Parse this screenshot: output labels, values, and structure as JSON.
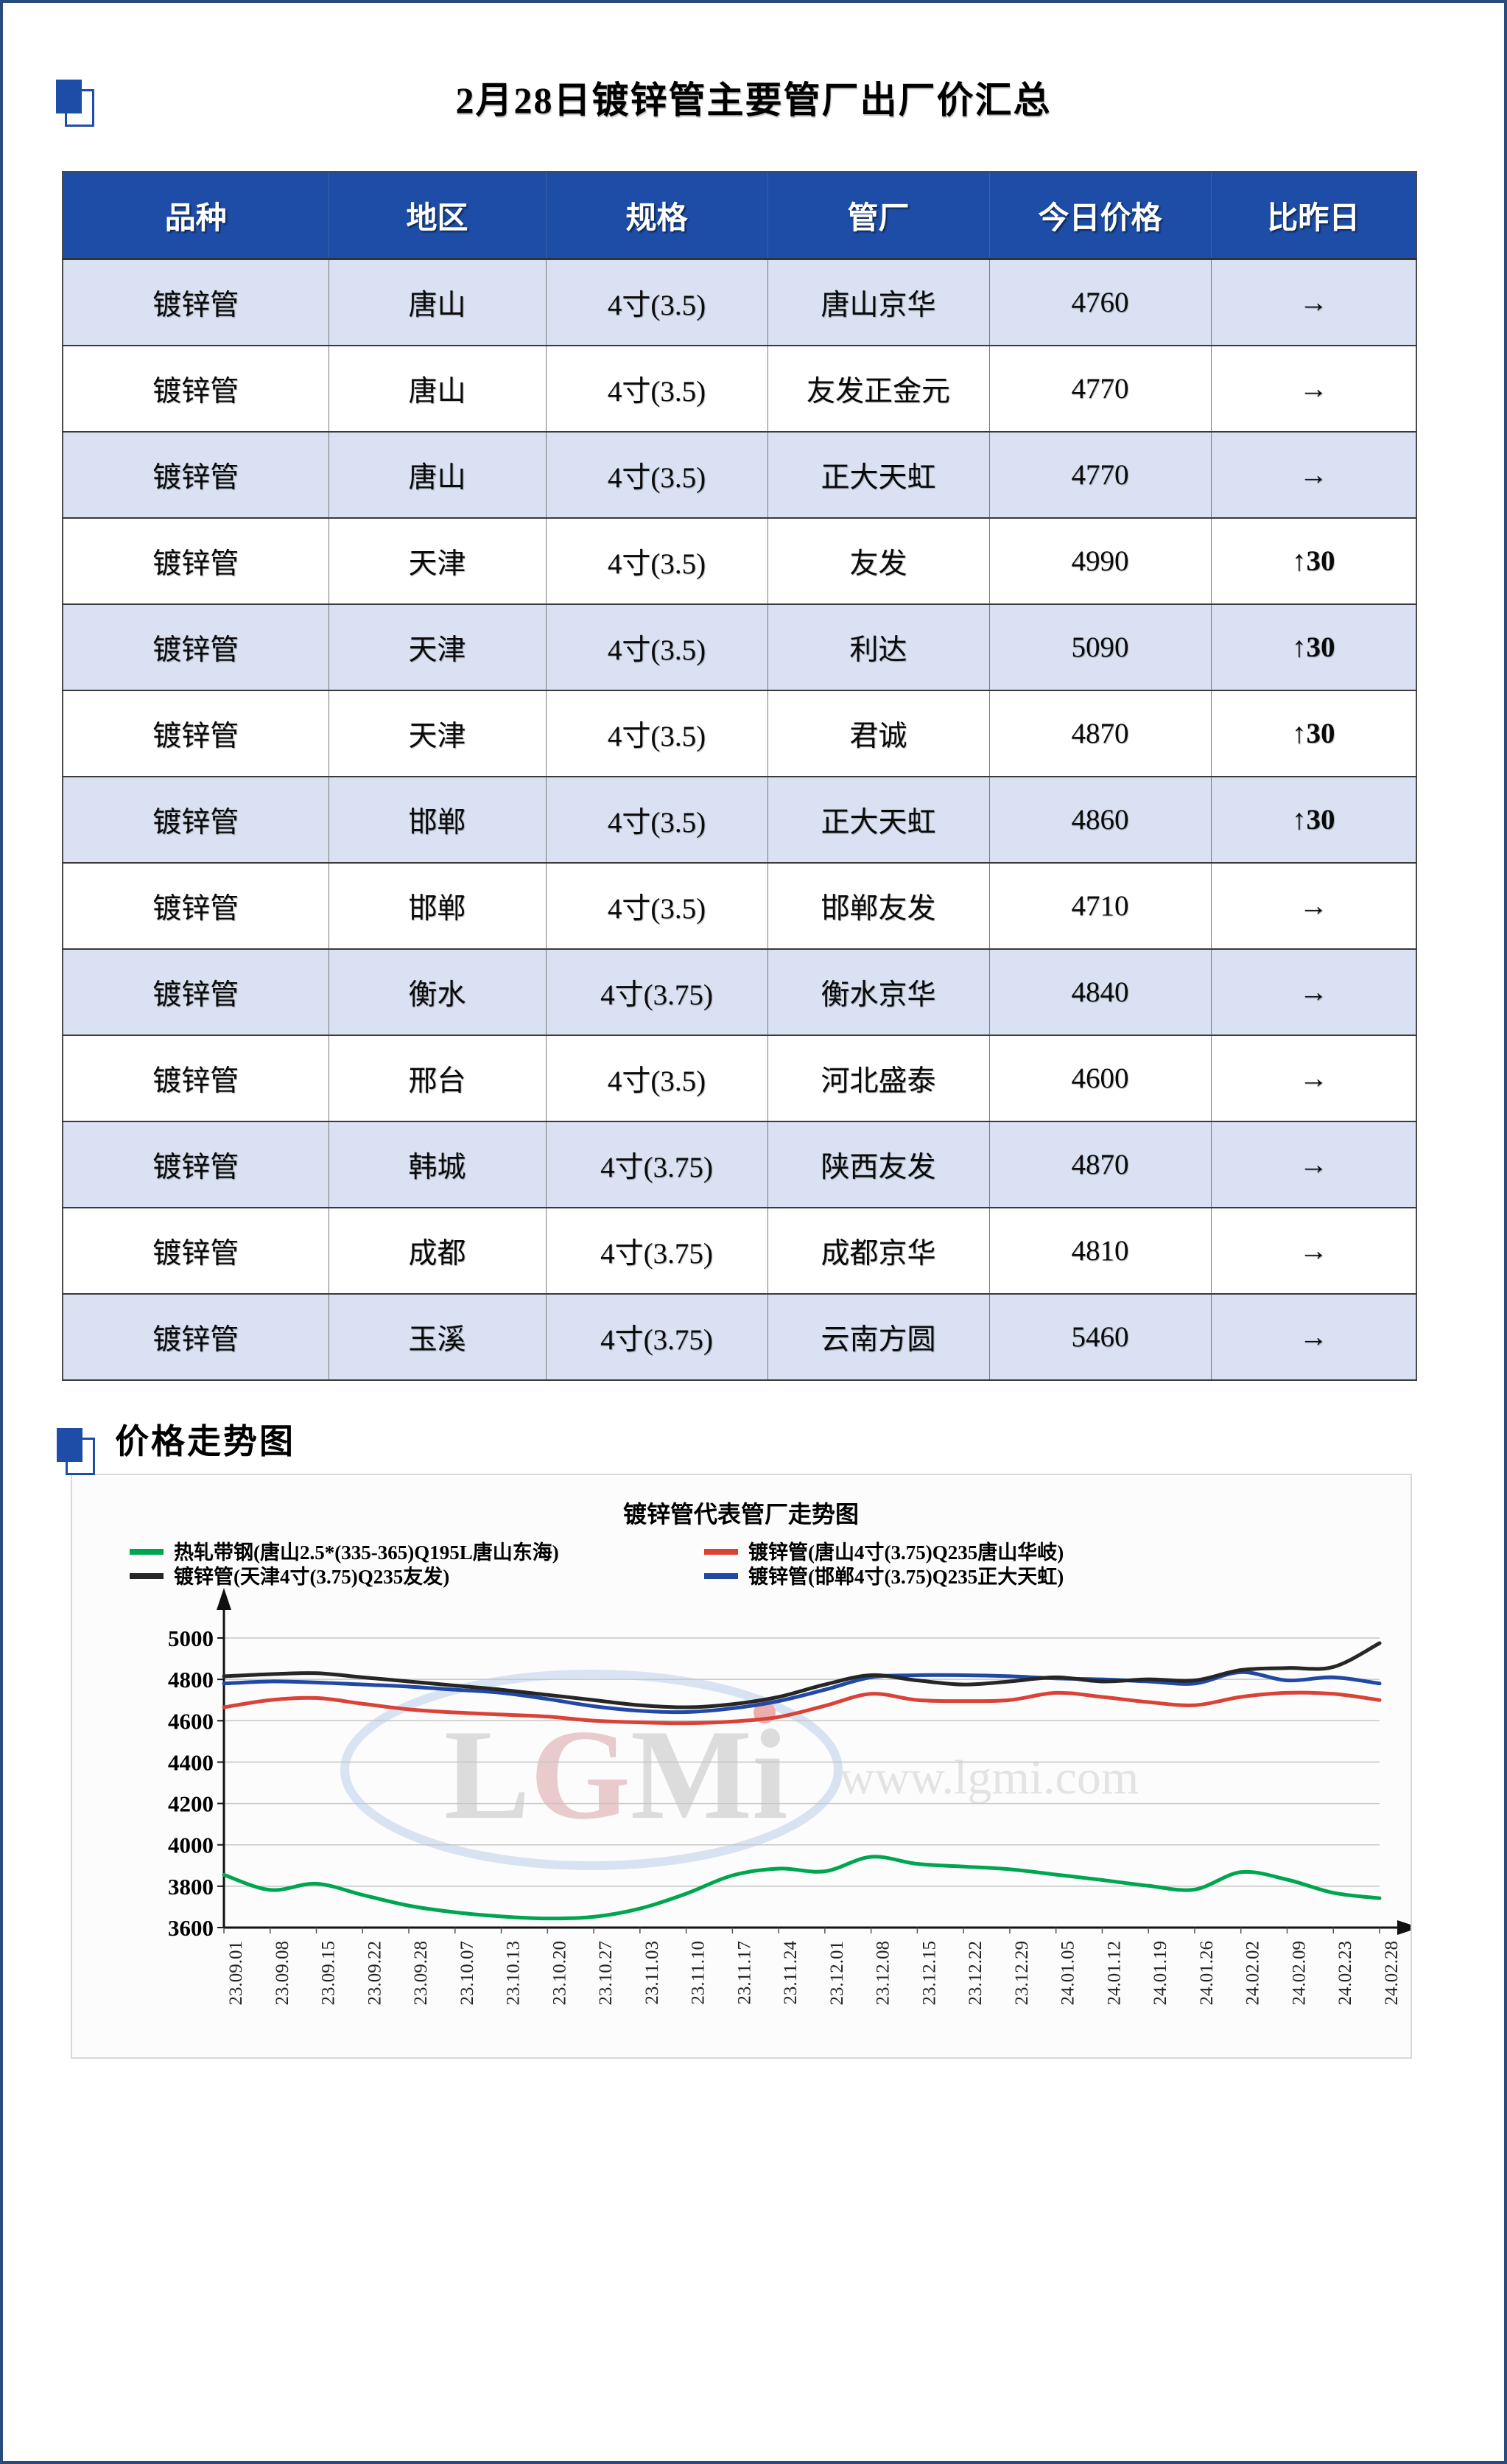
{
  "page": {
    "title": "2月28日镀锌管主要管厂出厂价汇总",
    "section2_title": "价格走势图",
    "border_color": "#2A4B7C",
    "accent_blue": "#1D4DA6"
  },
  "table": {
    "headers": [
      "品种",
      "地区",
      "规格",
      "管厂",
      "今日价格",
      "比昨日"
    ],
    "colors": {
      "header_bg": "#1D4DA6",
      "header_text": "#FFFFFF",
      "row_alt_bg": "#D9E1F2",
      "row_bg": "#FFFFFF",
      "up_color": "#FE0000",
      "flat_color": "#111111"
    },
    "rows": [
      {
        "variety": "镀锌管",
        "region": "唐山",
        "spec": "4寸(3.5)",
        "mill": "唐山京华",
        "price": "4760",
        "change": "→",
        "direction": "flat"
      },
      {
        "variety": "镀锌管",
        "region": "唐山",
        "spec": "4寸(3.5)",
        "mill": "友发正金元",
        "price": "4770",
        "change": "→",
        "direction": "flat"
      },
      {
        "variety": "镀锌管",
        "region": "唐山",
        "spec": "4寸(3.5)",
        "mill": "正大天虹",
        "price": "4770",
        "change": "→",
        "direction": "flat"
      },
      {
        "variety": "镀锌管",
        "region": "天津",
        "spec": "4寸(3.5)",
        "mill": "友发",
        "price": "4990",
        "change": "↑30",
        "direction": "up"
      },
      {
        "variety": "镀锌管",
        "region": "天津",
        "spec": "4寸(3.5)",
        "mill": "利达",
        "price": "5090",
        "change": "↑30",
        "direction": "up"
      },
      {
        "variety": "镀锌管",
        "region": "天津",
        "spec": "4寸(3.5)",
        "mill": "君诚",
        "price": "4870",
        "change": "↑30",
        "direction": "up"
      },
      {
        "variety": "镀锌管",
        "region": "邯郸",
        "spec": "4寸(3.5)",
        "mill": "正大天虹",
        "price": "4860",
        "change": "↑30",
        "direction": "up"
      },
      {
        "variety": "镀锌管",
        "region": "邯郸",
        "spec": "4寸(3.5)",
        "mill": "邯郸友发",
        "price": "4710",
        "change": "→",
        "direction": "flat"
      },
      {
        "variety": "镀锌管",
        "region": "衡水",
        "spec": "4寸(3.75)",
        "mill": "衡水京华",
        "price": "4840",
        "change": "→",
        "direction": "flat"
      },
      {
        "variety": "镀锌管",
        "region": "邢台",
        "spec": "4寸(3.5)",
        "mill": "河北盛泰",
        "price": "4600",
        "change": "→",
        "direction": "flat"
      },
      {
        "variety": "镀锌管",
        "region": "韩城",
        "spec": "4寸(3.75)",
        "mill": "陕西友发",
        "price": "4870",
        "change": "→",
        "direction": "flat"
      },
      {
        "variety": "镀锌管",
        "region": "成都",
        "spec": "4寸(3.75)",
        "mill": "成都京华",
        "price": "4810",
        "change": "→",
        "direction": "flat"
      },
      {
        "variety": "镀锌管",
        "region": "玉溪",
        "spec": "4寸(3.75)",
        "mill": "云南方圆",
        "price": "5460",
        "change": "→",
        "direction": "flat"
      }
    ]
  },
  "chart_data": {
    "type": "line",
    "title": "镀锌管代表管厂走势图",
    "xlabel": "",
    "ylabel": "",
    "ylim": [
      3600,
      5000
    ],
    "ytick_step": 200,
    "yticks": [
      3600,
      3800,
      4000,
      4200,
      4400,
      4600,
      4800,
      5000
    ],
    "grid": true,
    "legend_position": "top",
    "xlabel_rotation": -90,
    "watermark": {
      "logo": "LGMi",
      "url": "www.lgmi.com"
    },
    "categories": [
      "23.09.01",
      "23.09.08",
      "23.09.15",
      "23.09.22",
      "23.09.28",
      "23.10.07",
      "23.10.13",
      "23.10.20",
      "23.10.27",
      "23.11.03",
      "23.11.10",
      "23.11.17",
      "23.11.24",
      "23.12.01",
      "23.12.08",
      "23.12.15",
      "23.12.22",
      "23.12.29",
      "24.01.05",
      "24.01.12",
      "24.01.19",
      "24.01.26",
      "24.02.02",
      "24.02.09",
      "24.02.23",
      "24.02.28"
    ],
    "series": [
      {
        "name": "热轧带钢(唐山2.5*(335-365)Q195L唐山东海)",
        "color": "#00A550",
        "values": [
          3855,
          3782,
          3812,
          3758,
          3706,
          3674,
          3654,
          3644,
          3652,
          3692,
          3764,
          3852,
          3885,
          3872,
          3942,
          3908,
          3895,
          3882,
          3856,
          3830,
          3802,
          3784,
          3868,
          3832,
          3768,
          3742
        ]
      },
      {
        "name": "镀锌管(唐山4寸(3.75)Q235唐山华岐)",
        "color": "#DB4237",
        "values": [
          4665,
          4700,
          4710,
          4682,
          4655,
          4640,
          4630,
          4620,
          4600,
          4592,
          4588,
          4596,
          4618,
          4672,
          4730,
          4700,
          4695,
          4700,
          4735,
          4715,
          4690,
          4675,
          4715,
          4735,
          4730,
          4700
        ]
      },
      {
        "name": "镀锌管(天津4寸(3.75)Q235友发)",
        "color": "#262626",
        "values": [
          4815,
          4825,
          4830,
          4810,
          4790,
          4770,
          4750,
          4725,
          4700,
          4675,
          4665,
          4680,
          4715,
          4775,
          4820,
          4795,
          4775,
          4790,
          4810,
          4790,
          4800,
          4795,
          4845,
          4855,
          4860,
          4975
        ]
      },
      {
        "name": "镀锌管(邯郸4寸(3.75)Q235正大天虹)",
        "color": "#2149A4",
        "values": [
          4780,
          4790,
          4785,
          4775,
          4765,
          4750,
          4735,
          4705,
          4670,
          4648,
          4642,
          4660,
          4695,
          4750,
          4810,
          4820,
          4820,
          4815,
          4805,
          4800,
          4790,
          4780,
          4835,
          4795,
          4810,
          4780
        ]
      }
    ]
  }
}
